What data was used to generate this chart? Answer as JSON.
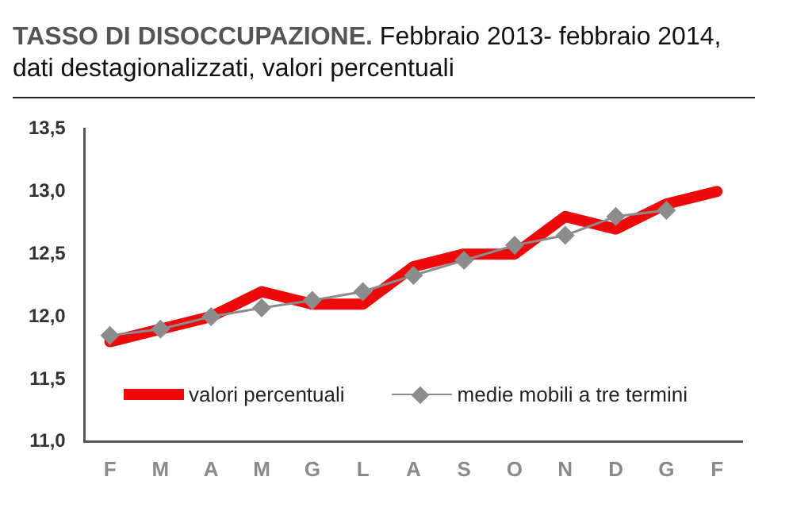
{
  "chart_data": {
    "type": "line",
    "title": "TASSO DI DISOCCUPAZIONE.",
    "subtitle": "Febbraio 2013- febbraio 2014, dati destagionalizzati, valori percentuali",
    "categories": [
      "F",
      "M",
      "A",
      "M",
      "G",
      "L",
      "A",
      "S",
      "O",
      "N",
      "D",
      "G",
      "F"
    ],
    "series": [
      {
        "name": "valori percentuali",
        "color": "#ee0a0a",
        "marker": "none",
        "values": [
          11.8,
          11.9,
          12.0,
          12.2,
          12.1,
          12.1,
          12.4,
          12.5,
          12.5,
          12.8,
          12.7,
          12.9,
          13.0
        ]
      },
      {
        "name": "medie mobili a tre termini",
        "color": "#8c8c8c",
        "marker": "diamond",
        "values": [
          11.85,
          11.9,
          12.0,
          12.07,
          12.13,
          12.2,
          12.33,
          12.45,
          12.57,
          12.65,
          12.8,
          12.85,
          null
        ]
      }
    ],
    "ylim": [
      11.0,
      13.5
    ],
    "yticks": [
      {
        "value": 11.0,
        "label": "11,0"
      },
      {
        "value": 11.5,
        "label": "11,5"
      },
      {
        "value": 12.0,
        "label": "12,0"
      },
      {
        "value": 12.5,
        "label": "12,5"
      },
      {
        "value": 13.0,
        "label": "13,0"
      },
      {
        "value": 13.5,
        "label": "13,5"
      }
    ],
    "grid": false,
    "legend": "bottom"
  }
}
